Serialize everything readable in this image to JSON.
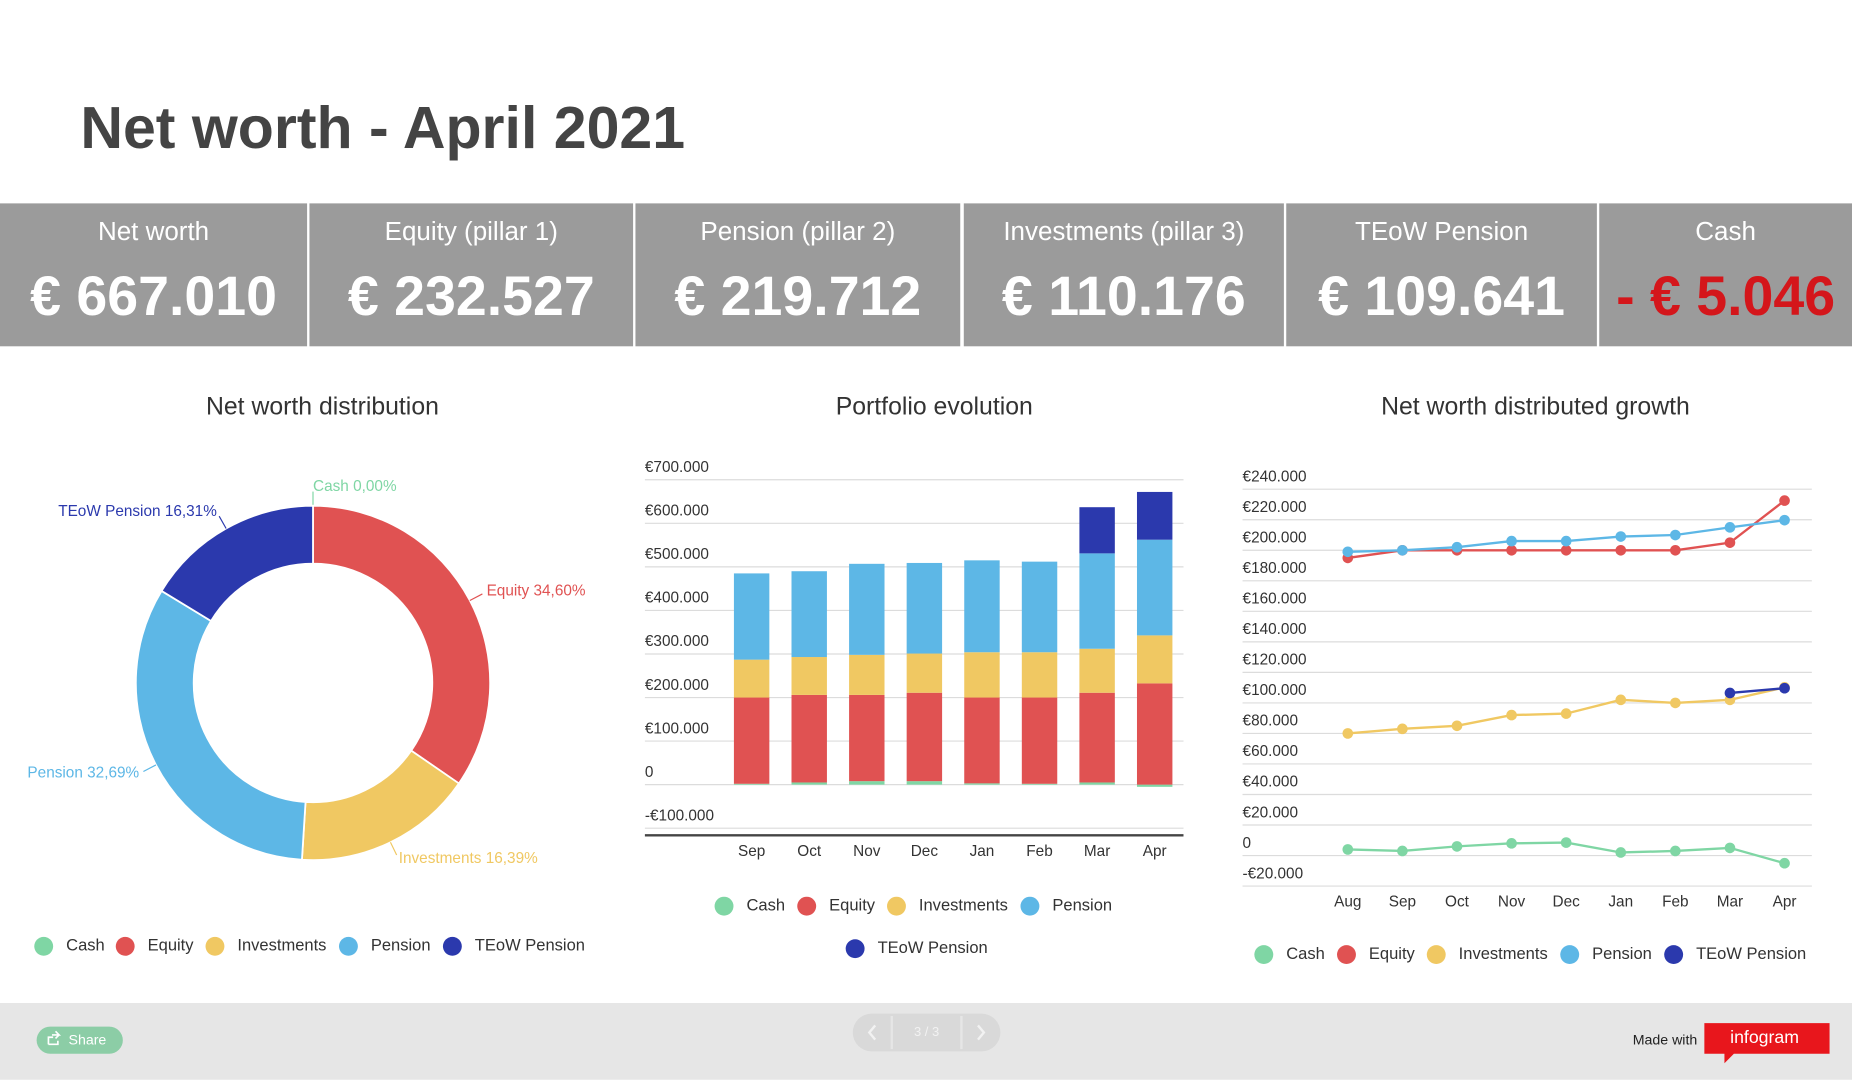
{
  "header": {
    "title": "Net worth - April 2021"
  },
  "kpis": [
    {
      "label": "Net worth",
      "value": "€ 667.010"
    },
    {
      "label": "Equity (pillar 1)",
      "value": "€ 232.527"
    },
    {
      "label": "Pension (pillar 2)",
      "value": "€ 219.712"
    },
    {
      "label": "Investments (pillar 3)",
      "value": "€ 110.176"
    },
    {
      "label": "TEoW Pension",
      "value": "€ 109.641"
    },
    {
      "label": "Cash",
      "value": "- € 5.046"
    }
  ],
  "chart_data": [
    {
      "type": "pie",
      "title": "Net worth distribution",
      "categories": [
        "Cash",
        "Equity",
        "Investments",
        "Pension",
        "TEoW Pension"
      ],
      "values": [
        0,
        34.6,
        16.39,
        32.69,
        16.31
      ],
      "value_labels": [
        "0,00%",
        "34,60%",
        "16,39%",
        "32,69%",
        "16,31%"
      ],
      "colors": [
        "#7fd6a4",
        "#e05252",
        "#f0c862",
        "#5db7e6",
        "#2b39ad"
      ]
    },
    {
      "type": "bar",
      "title": "Portfolio evolution",
      "stacked": true,
      "categories": [
        "Sep",
        "Oct",
        "Nov",
        "Dec",
        "Jan",
        "Feb",
        "Mar",
        "Apr"
      ],
      "series": [
        {
          "name": "Cash",
          "color": "#7fd6a4",
          "values": [
            2000,
            5000,
            8000,
            8000,
            3000,
            2000,
            5000,
            -5046
          ]
        },
        {
          "name": "Equity",
          "color": "#e05252",
          "values": [
            198000,
            201000,
            198000,
            203000,
            197000,
            198000,
            206000,
            232527
          ]
        },
        {
          "name": "Investments",
          "color": "#f0c862",
          "values": [
            87000,
            87000,
            92000,
            90000,
            104000,
            104000,
            101000,
            110176
          ]
        },
        {
          "name": "Pension",
          "color": "#5db7e6",
          "values": [
            198000,
            197000,
            209000,
            208000,
            211000,
            208000,
            219000,
            219712
          ]
        },
        {
          "name": "TEoW Pension",
          "color": "#2b39ad",
          "values": [
            null,
            null,
            null,
            null,
            null,
            null,
            106000,
            109641
          ]
        }
      ],
      "ylim": [
        -100000,
        700000
      ],
      "yticks": [
        {
          "value": -100000,
          "label": "-€100.000"
        },
        0,
        {
          "value": 100000,
          "label": "€100.000"
        },
        {
          "value": 200000,
          "label": "€200.000"
        },
        {
          "value": 300000,
          "label": "€300.000"
        },
        {
          "value": 400000,
          "label": "€400.000"
        },
        {
          "value": 500000,
          "label": "€500.000"
        },
        {
          "value": 600000,
          "label": "€600.000"
        },
        {
          "value": 700000,
          "label": "€700.000"
        }
      ],
      "grid": true
    },
    {
      "type": "line",
      "title": "Net worth distributed growth",
      "categories": [
        "Aug",
        "Sep",
        "Oct",
        "Nov",
        "Dec",
        "Jan",
        "Feb",
        "Mar",
        "Apr"
      ],
      "series": [
        {
          "name": "Cash",
          "color": "#7fd6a4",
          "values": [
            4000,
            3000,
            6000,
            8000,
            8500,
            2000,
            3000,
            5000,
            -5046
          ]
        },
        {
          "name": "Equity",
          "color": "#e05252",
          "values": [
            195000,
            200000,
            200000,
            200000,
            200000,
            200000,
            200000,
            205000,
            232527
          ]
        },
        {
          "name": "Investments",
          "color": "#f0c862",
          "values": [
            80000,
            83000,
            85000,
            92000,
            93000,
            102000,
            100000,
            102000,
            110176
          ]
        },
        {
          "name": "Pension",
          "color": "#5db7e6",
          "values": [
            199000,
            200000,
            202000,
            206000,
            206000,
            209000,
            210000,
            215000,
            219712
          ]
        },
        {
          "name": "TEoW Pension",
          "color": "#2b39ad",
          "values": [
            null,
            null,
            null,
            null,
            null,
            null,
            null,
            106500,
            109641
          ]
        }
      ],
      "ylim": [
        -20000,
        240000
      ],
      "yticks": [
        {
          "value": -20000,
          "label": "-€20.000"
        },
        0,
        {
          "value": 20000,
          "label": "€20.000"
        },
        {
          "value": 40000,
          "label": "€40.000"
        },
        {
          "value": 60000,
          "label": "€60.000"
        },
        {
          "value": 80000,
          "label": "€80.000"
        },
        {
          "value": 100000,
          "label": "€100.000"
        },
        {
          "value": 120000,
          "label": "€120.000"
        },
        {
          "value": 140000,
          "label": "€140.000"
        },
        {
          "value": 160000,
          "label": "€160.000"
        },
        {
          "value": 180000,
          "label": "€180.000"
        },
        {
          "value": 200000,
          "label": "€200.000"
        },
        {
          "value": 220000,
          "label": "€220.000"
        },
        {
          "value": 240000,
          "label": "€240.000"
        }
      ],
      "grid": true
    }
  ],
  "footer": {
    "share": "Share",
    "pager": "3 / 3",
    "made_with": "Made with",
    "brand": "infogram"
  }
}
